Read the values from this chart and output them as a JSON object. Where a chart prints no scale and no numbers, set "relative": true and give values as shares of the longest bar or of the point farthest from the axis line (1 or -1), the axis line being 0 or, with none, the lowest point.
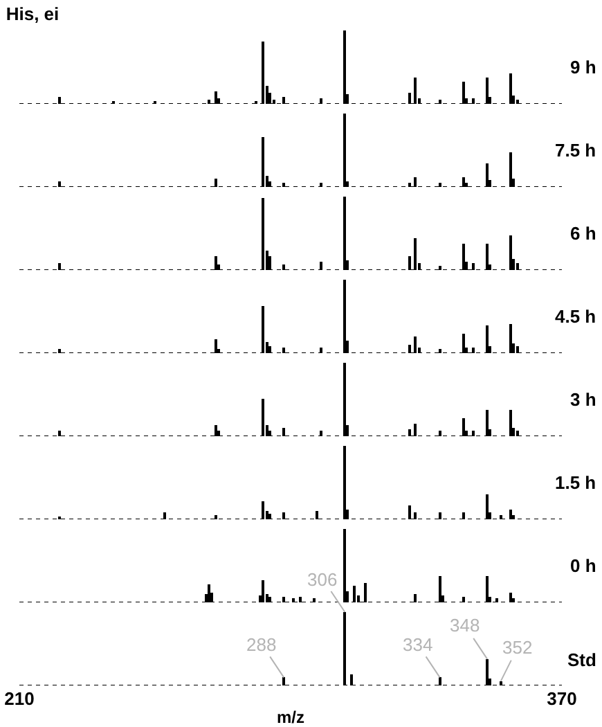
{
  "chart_data": [
    {
      "type": "bar",
      "title": "His, ei",
      "annotations": [
        "9 h"
      ],
      "color": "#000000",
      "relative": true,
      "xlim": [
        210,
        370
      ],
      "tick_labels": false,
      "x": [
        222,
        238,
        250,
        266,
        268,
        269,
        280,
        282,
        283,
        284,
        285,
        288,
        299,
        306,
        307,
        325,
        327,
        328,
        334,
        341,
        342,
        344,
        348,
        349,
        355,
        356,
        357
      ],
      "values": [
        0.09,
        0.03,
        0.03,
        0.06,
        0.17,
        0.08,
        0.04,
        0.84,
        0.25,
        0.15,
        0.06,
        0.1,
        0.08,
        1,
        0.14,
        0.15,
        0.36,
        0.08,
        0.06,
        0.3,
        0.08,
        0.08,
        0.36,
        0.1,
        0.42,
        0.12,
        0.06
      ]
    },
    {
      "type": "bar",
      "annotations": [
        "7.5 h"
      ],
      "color": "#000000",
      "relative": true,
      "xlim": [
        210,
        370
      ],
      "tick_labels": false,
      "x": [
        222,
        268,
        282,
        283,
        284,
        288,
        299,
        306,
        307,
        325,
        327,
        334,
        341,
        342,
        348,
        349,
        355,
        356
      ],
      "values": [
        0.08,
        0.12,
        0.68,
        0.15,
        0.08,
        0.06,
        0.05,
        1,
        0.08,
        0.06,
        0.14,
        0.06,
        0.14,
        0.06,
        0.32,
        0.1,
        0.47,
        0.12
      ]
    },
    {
      "type": "bar",
      "annotations": [
        "6 h"
      ],
      "color": "#000000",
      "relative": true,
      "xlim": [
        210,
        370
      ],
      "tick_labels": false,
      "x": [
        222,
        268,
        269,
        282,
        283,
        284,
        288,
        299,
        306,
        307,
        325,
        327,
        328,
        334,
        341,
        342,
        344,
        348,
        349,
        355,
        356,
        357
      ],
      "values": [
        0.09,
        0.19,
        0.08,
        0.99,
        0.27,
        0.18,
        0.08,
        0.11,
        1,
        0.14,
        0.19,
        0.44,
        0.1,
        0.06,
        0.35,
        0.11,
        0.1,
        0.35,
        0.08,
        0.47,
        0.16,
        0.1
      ]
    },
    {
      "type": "bar",
      "annotations": [
        "4.5 h"
      ],
      "color": "#000000",
      "relative": true,
      "xlim": [
        210,
        370
      ],
      "tick_labels": false,
      "x": [
        222,
        268,
        269,
        282,
        283,
        284,
        288,
        299,
        306,
        307,
        325,
        327,
        328,
        334,
        341,
        342,
        344,
        348,
        349,
        355,
        356,
        357
      ],
      "values": [
        0.06,
        0.18,
        0.06,
        0.64,
        0.16,
        0.1,
        0.08,
        0.08,
        1,
        0.17,
        0.12,
        0.23,
        0.08,
        0.06,
        0.27,
        0.08,
        0.08,
        0.38,
        0.1,
        0.39,
        0.14,
        0.1
      ]
    },
    {
      "type": "bar",
      "annotations": [
        "3 h"
      ],
      "color": "#000000",
      "relative": true,
      "xlim": [
        210,
        370
      ],
      "tick_labels": false,
      "x": [
        222,
        268,
        269,
        282,
        283,
        284,
        288,
        299,
        306,
        307,
        325,
        327,
        334,
        341,
        342,
        344,
        348,
        349,
        355,
        356,
        357
      ],
      "values": [
        0.07,
        0.16,
        0.07,
        0.51,
        0.15,
        0.08,
        0.11,
        0.08,
        1,
        0.15,
        0.1,
        0.17,
        0.08,
        0.25,
        0.08,
        0.07,
        0.36,
        0.1,
        0.36,
        0.12,
        0.08
      ]
    },
    {
      "type": "bar",
      "annotations": [
        "1.5 h"
      ],
      "color": "#000000",
      "relative": true,
      "xlim": [
        210,
        370
      ],
      "tick_labels": false,
      "x": [
        222,
        253,
        268,
        282,
        283,
        284,
        288,
        298,
        306,
        307,
        325,
        327,
        334,
        341,
        348,
        349,
        352,
        355,
        356
      ],
      "values": [
        0.04,
        0.1,
        0.06,
        0.25,
        0.12,
        0.08,
        0.1,
        0.12,
        1,
        0.13,
        0.19,
        0.1,
        0.09,
        0.09,
        0.34,
        0.1,
        0.05,
        0.13,
        0.06
      ]
    },
    {
      "type": "bar",
      "annotations": [
        "0 h"
      ],
      "color": "#000000",
      "relative": true,
      "xlim": [
        210,
        370
      ],
      "tick_labels": false,
      "x": [
        265,
        266,
        267,
        281,
        282,
        283,
        284,
        288,
        291,
        293,
        297,
        306,
        307,
        309,
        310,
        312,
        327,
        334,
        335,
        341,
        348,
        349,
        351,
        355,
        356
      ],
      "values": [
        0.12,
        0.25,
        0.13,
        0.1,
        0.31,
        0.12,
        0.07,
        0.07,
        0.06,
        0.08,
        0.06,
        1,
        0.15,
        0.22,
        0.1,
        0.27,
        0.12,
        0.36,
        0.1,
        0.07,
        0.36,
        0.07,
        0.06,
        0.14,
        0.06
      ]
    },
    {
      "type": "bar",
      "annotations": [
        "Std",
        {
          "text": "288",
          "x": 288,
          "y": 0.11
        },
        {
          "text": "306",
          "x": 306,
          "y": 1
        },
        {
          "text": "334",
          "x": 334,
          "y": 0.11
        },
        {
          "text": "348",
          "x": 348,
          "y": 0.36
        },
        {
          "text": "352",
          "x": 352,
          "y": 0.06
        }
      ],
      "color": "#000000",
      "relative": true,
      "xlim": [
        210,
        370
      ],
      "xticks": [
        210,
        370
      ],
      "xlabel": "m/z",
      "tick_labels": "x",
      "x": [
        288,
        306,
        308,
        334,
        348,
        349,
        352
      ],
      "values": [
        0.11,
        1,
        0.16,
        0.11,
        0.36,
        0.1,
        0.06
      ]
    }
  ]
}
